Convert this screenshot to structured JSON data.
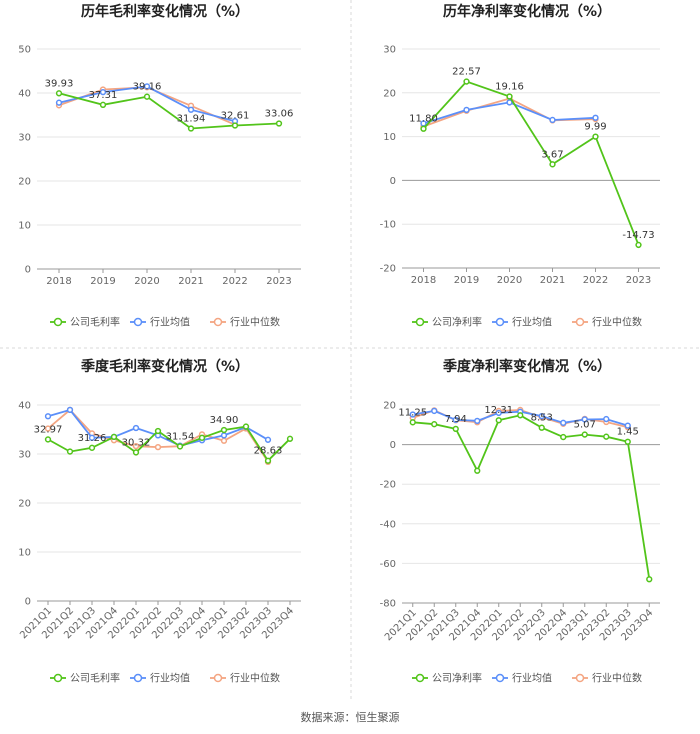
{
  "source": "数据来源：恒生聚源",
  "colors": {
    "company": "#52c41a",
    "avg": "#5b8ff9",
    "median": "#f4a582",
    "grid": "#e6e6e6",
    "axis": "#999999",
    "divider": "#d9d9d9"
  },
  "legend": {
    "avg": "行业均值",
    "median": "行业中位数"
  },
  "chart_data": [
    {
      "id": "annual_gross",
      "type": "line",
      "title": "历年毛利率变化情况（%）",
      "categories": [
        "2018",
        "2019",
        "2020",
        "2021",
        "2022",
        "2023"
      ],
      "ylim": [
        0,
        50
      ],
      "yticks": [
        0,
        10,
        20,
        30,
        40,
        50
      ],
      "series": [
        {
          "name": "公司毛利率",
          "key": "company",
          "values": [
            39.93,
            37.31,
            39.16,
            31.94,
            32.61,
            33.06
          ]
        },
        {
          "name": "行业均值",
          "key": "avg",
          "values": [
            37.8,
            40.2,
            41.5,
            36.2,
            33.6,
            null
          ]
        },
        {
          "name": "行业中位数",
          "key": "median",
          "values": [
            37.2,
            40.8,
            41.3,
            37.1,
            32.8,
            null
          ]
        }
      ],
      "labels": [
        "39.93",
        "37.31",
        "39.16",
        "31.94",
        "32.61",
        "33.06"
      ],
      "rotate_x": false
    },
    {
      "id": "annual_net",
      "type": "line",
      "title": "历年净利率变化情况（%）",
      "categories": [
        "2018",
        "2019",
        "2020",
        "2021",
        "2022",
        "2023"
      ],
      "ylim": [
        -20,
        30
      ],
      "yticks": [
        -20,
        -10,
        0,
        10,
        20,
        30
      ],
      "series": [
        {
          "name": "公司净利率",
          "key": "company",
          "values": [
            11.8,
            22.57,
            19.16,
            3.67,
            9.99,
            -14.73
          ]
        },
        {
          "name": "行业均值",
          "key": "avg",
          "values": [
            13.0,
            16.1,
            17.8,
            13.8,
            14.3,
            null
          ]
        },
        {
          "name": "行业中位数",
          "key": "median",
          "values": [
            12.3,
            15.9,
            18.7,
            13.7,
            14.0,
            null
          ]
        }
      ],
      "labels": [
        "11.80",
        "22.57",
        "19.16",
        "3.67",
        "9.99",
        "-14.73"
      ],
      "rotate_x": false
    },
    {
      "id": "quarter_gross",
      "type": "line",
      "title": "季度毛利率变化情况（%）",
      "categories": [
        "2021Q1",
        "2021Q2",
        "2021Q3",
        "2021Q4",
        "2022Q1",
        "2022Q2",
        "2022Q3",
        "2022Q4",
        "2023Q1",
        "2023Q2",
        "2023Q3",
        "2023Q4"
      ],
      "ylim": [
        0,
        40
      ],
      "yticks": [
        0,
        10,
        20,
        30,
        40
      ],
      "series": [
        {
          "name": "公司毛利率",
          "key": "company",
          "values": [
            32.97,
            30.5,
            31.26,
            33.5,
            30.32,
            34.7,
            31.54,
            33.3,
            34.9,
            35.6,
            28.63,
            33.1
          ]
        },
        {
          "name": "行业均值",
          "key": "avg",
          "values": [
            37.7,
            39.0,
            33.3,
            33.5,
            35.3,
            33.8,
            31.7,
            32.8,
            33.8,
            35.5,
            32.9,
            null
          ]
        },
        {
          "name": "行业中位数",
          "key": "median",
          "values": [
            35.2,
            39.0,
            34.2,
            32.8,
            31.6,
            31.4,
            31.6,
            34.0,
            32.7,
            35.2,
            28.4,
            null
          ]
        }
      ],
      "labels": [
        "32.97",
        "",
        "31.26",
        "",
        "30.32",
        "",
        "31.54",
        "",
        "34.90",
        "",
        "28.63",
        ""
      ],
      "rotate_x": true
    },
    {
      "id": "quarter_net",
      "type": "line",
      "title": "季度净利率变化情况（%）",
      "categories": [
        "2021Q1",
        "2021Q2",
        "2021Q3",
        "2021Q4",
        "2022Q1",
        "2022Q2",
        "2022Q3",
        "2022Q4",
        "2023Q1",
        "2023Q2",
        "2023Q3",
        "2023Q4"
      ],
      "ylim": [
        -80,
        20
      ],
      "yticks": [
        -80,
        -60,
        -40,
        -20,
        0,
        20
      ],
      "series": [
        {
          "name": "公司净利率",
          "key": "company",
          "values": [
            11.25,
            10.3,
            7.94,
            -13.2,
            12.31,
            14.8,
            8.53,
            3.8,
            5.07,
            4.0,
            1.45,
            -68.0
          ]
        },
        {
          "name": "行业均值",
          "key": "avg",
          "values": [
            15.2,
            17.0,
            12.5,
            12.0,
            16.0,
            16.6,
            14.4,
            11.0,
            12.7,
            12.9,
            9.6,
            null
          ]
        },
        {
          "name": "行业中位数",
          "key": "median",
          "values": [
            13.5,
            17.3,
            12.3,
            11.3,
            17.0,
            17.5,
            13.8,
            10.5,
            13.0,
            11.4,
            8.8,
            null
          ]
        }
      ],
      "labels": [
        "11.25",
        "",
        "7.94",
        "",
        "12.31",
        "",
        "8.53",
        "",
        "5.07",
        "",
        "1.45",
        ""
      ],
      "rotate_x": true
    }
  ]
}
